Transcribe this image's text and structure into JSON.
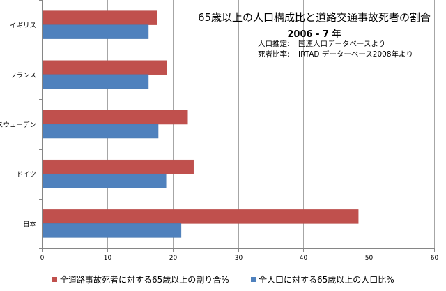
{
  "chart_data": {
    "type": "bar",
    "orientation": "horizontal",
    "title": "65歳以上の人口構成比と道路交通事故死者の割合",
    "subtitle": "2006 - 7 年",
    "notes": [
      {
        "key": "人口推定:",
        "value": "国連人口データベースより"
      },
      {
        "key": "死者比率:",
        "value": "IRTAD データーベース2008年より"
      }
    ],
    "categories": [
      "イギリス",
      "フランス",
      "スウェーデン",
      "ドイツ",
      "日本"
    ],
    "series": [
      {
        "name": "全道路事故死者に対する65歳以上の割り合%",
        "color": "#C0504D",
        "values": [
          17.6,
          19.1,
          22.3,
          23.2,
          48.4
        ]
      },
      {
        "name": "全人口に対する65歳以上の人口比%",
        "color": "#4F81BD",
        "values": [
          16.3,
          16.3,
          17.8,
          19.0,
          21.3
        ]
      }
    ],
    "xlim": [
      0,
      60
    ],
    "xticks": [
      "0",
      "10",
      "20",
      "30",
      "40",
      "50",
      "60"
    ],
    "grid": true,
    "legend_position": "bottom",
    "xlabel": "",
    "ylabel": ""
  }
}
